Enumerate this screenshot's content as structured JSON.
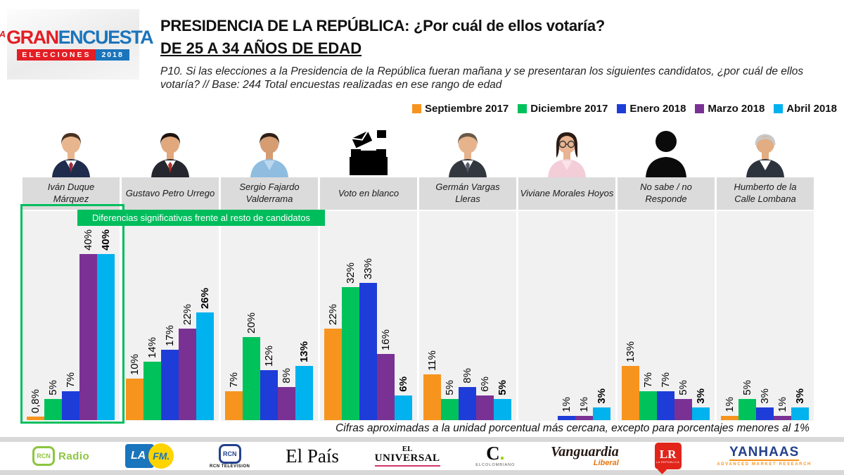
{
  "logo": {
    "la": "LA",
    "gran": "GRAN",
    "encuesta": "ENCUESTA",
    "elecciones": "ELECCIONES",
    "year": "2018"
  },
  "header": {
    "title": "PRESIDENCIA DE LA REPÚBLICA: ¿Por cuál de ellos votaría?",
    "subtitle": "DE 25 A 34 AÑOS DE EDAD",
    "question": "P10. Si las elecciones a la Presidencia de la República fueran mañana y se presentaran los siguientes candidatos, ¿por cuál de ellos votaría?  // Base: 244 Total encuestas realizadas en ese rango de edad"
  },
  "legend": [
    {
      "label": "Septiembre 2017",
      "color": "#F7941E"
    },
    {
      "label": "Diciembre 2017",
      "color": "#00C25B"
    },
    {
      "label": "Enero 2018",
      "color": "#1E3CD8"
    },
    {
      "label": "Marzo 2018",
      "color": "#7A3194"
    },
    {
      "label": "Abril 2018",
      "color": "#00B2EE"
    }
  ],
  "highlight": {
    "note": "Diferencias significativas frente al resto de candidatos",
    "color": "#00BD5C"
  },
  "chart_data": {
    "type": "bar",
    "unit": "%",
    "ylim": [
      0,
      50
    ],
    "grid": false,
    "legend_position": "top-right",
    "series": [
      "Septiembre 2017",
      "Diciembre 2017",
      "Enero 2018",
      "Marzo 2018",
      "Abril 2018"
    ],
    "categories": [
      "Iván Duque Márquez",
      "Gustavo Petro Urrego",
      "Sergio Fajardo Valderrama",
      "Voto en blanco",
      "Germán Vargas Lleras",
      "Viviane Morales Hoyos",
      "No sabe / no Responde",
      "Humberto de la Calle Lombana"
    ],
    "candidates": [
      {
        "name": "Iván Duque Márquez",
        "name_lines": "Iván Duque\nMárquez",
        "values": [
          0.8,
          5,
          7,
          40,
          40
        ],
        "labels": [
          "0,8%",
          "5%",
          "7%",
          "40%",
          "40%"
        ],
        "highlighted": true,
        "photo": {
          "kind": "person",
          "hair": "#4a3220",
          "skin": "#e8b68e",
          "suit": "#1f2c4d",
          "shirt": "#ffffff",
          "tie": "#9e2b3e"
        }
      },
      {
        "name": "Gustavo Petro Urrego",
        "name_lines": "Gustavo Petro Urrego",
        "values": [
          10,
          14,
          17,
          22,
          26
        ],
        "labels": [
          "10%",
          "14%",
          "17%",
          "22%",
          "26%"
        ],
        "photo": {
          "kind": "person",
          "hair": "#1d1410",
          "skin": "#e0a87c",
          "suit": "#26262e",
          "shirt": "#ffffff",
          "tie": "#b03427"
        }
      },
      {
        "name": "Sergio Fajardo Valderrama",
        "name_lines": "Sergio Fajardo\nValderrama",
        "values": [
          7,
          20,
          12,
          8,
          13
        ],
        "labels": [
          "7%",
          "20%",
          "12%",
          "8%",
          "13%"
        ],
        "photo": {
          "kind": "person",
          "hair": "#2e2018",
          "skin": "#d69c72",
          "suit": "#8fbde0",
          "shirt": "#bcd8ee"
        }
      },
      {
        "name": "Voto en blanco",
        "name_lines": "Voto en blanco",
        "values": [
          22,
          32,
          33,
          16,
          6
        ],
        "labels": [
          "22%",
          "32%",
          "33%",
          "16%",
          "6%"
        ],
        "photo": {
          "kind": "ballot"
        }
      },
      {
        "name": "Germán Vargas Lleras",
        "name_lines": "Germán Vargas\nLleras",
        "values": [
          11,
          5,
          8,
          6,
          5
        ],
        "labels": [
          "11%",
          "5%",
          "8%",
          "6%",
          "5%"
        ],
        "photo": {
          "kind": "person",
          "hair": "#6b5a48",
          "skin": "#e7b38c",
          "suit": "#33383f",
          "shirt": "#ffffff",
          "tie": "#5a5a6e"
        }
      },
      {
        "name": "Viviane Morales Hoyos",
        "name_lines": "Viviane Morales Hoyos",
        "values": [
          null,
          null,
          1,
          1,
          3
        ],
        "labels": [
          "",
          "",
          "1%",
          "1%",
          "3%"
        ],
        "photo": {
          "kind": "person",
          "hair": "#2a1b14",
          "skin": "#e9b490",
          "suit": "#f3cdd8",
          "shirt": "#fae3ea",
          "glasses": true,
          "longhair": true
        }
      },
      {
        "name": "No sabe / no Responde",
        "name_lines": "No sabe / no\nResponde",
        "values": [
          13,
          7,
          7,
          5,
          3
        ],
        "labels": [
          "13%",
          "7%",
          "7%",
          "5%",
          "3%"
        ],
        "photo": {
          "kind": "silhouette"
        }
      },
      {
        "name": "Humberto de la Calle Lombana",
        "name_lines": "Humberto de la\nCalle Lombana",
        "values": [
          1,
          5,
          3,
          1,
          3
        ],
        "labels": [
          "1%",
          "5%",
          "3%",
          "1%",
          "3%"
        ],
        "photo": {
          "kind": "person",
          "hair": "#c9c9c9",
          "skin": "#e2ad83",
          "suit": "#2c333c",
          "shirt": "#ffffff",
          "bald": true
        }
      }
    ]
  },
  "footnote": "Cifras aproximadas a la unidad porcentual más cercana, excepto para porcentajes menores al 1%",
  "footer": {
    "logos": {
      "rcn_radio": {
        "icon_text": "RCN",
        "label": "Radio"
      },
      "la_fm": {
        "la": "LA",
        "fm": "FM."
      },
      "rcn_tv": {
        "icon_text": "RCN",
        "label": "RCN TELEVISION"
      },
      "el_pais": {
        "label": "El País"
      },
      "el_universal": {
        "line1": "EL",
        "line2": "UNIVERSAL"
      },
      "el_colombiano": {
        "c": "C",
        "dot": ".",
        "label": "ELCOLOMBIANO"
      },
      "vanguardia": {
        "main": "Vanguardia",
        "sub": "Liberal"
      },
      "lr": {
        "main": "LR",
        "sub": "LA REPÚBLICA"
      },
      "yanhaas": {
        "main": "YANHAAS",
        "sub": "ADVANCED MARKET RESEARCH"
      }
    }
  }
}
